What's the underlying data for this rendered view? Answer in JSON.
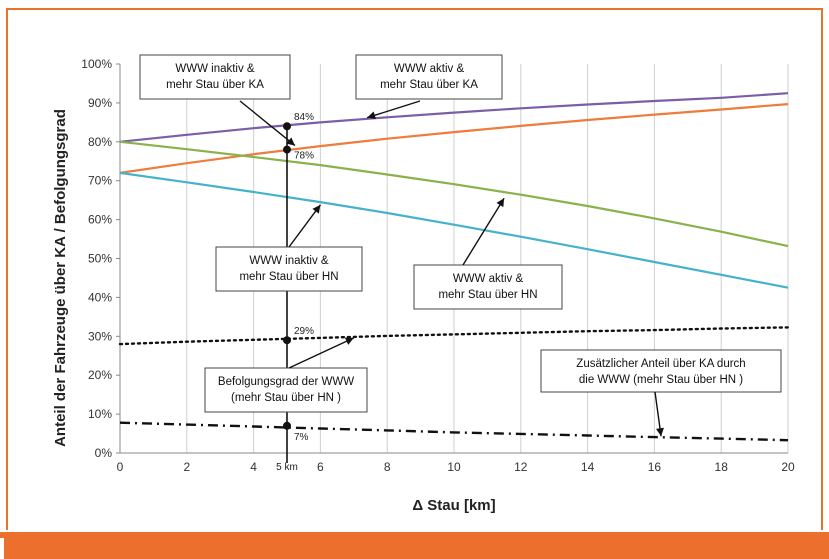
{
  "chart_data": {
    "type": "line",
    "xlabel": "Δ Stau [km]",
    "ylabel": "Anteil der Fahrzeuge über KA / Befolgungsgrad",
    "xlim": [
      0,
      20
    ],
    "ylim": [
      0,
      100
    ],
    "x_ticks": [
      "0",
      "2",
      "4",
      "6",
      "8",
      "10",
      "12",
      "14",
      "16",
      "18",
      "20"
    ],
    "y_ticks": [
      "0%",
      "10%",
      "20%",
      "30%",
      "40%",
      "50%",
      "60%",
      "70%",
      "80%",
      "90%",
      "100%"
    ],
    "grid": "vertical",
    "x": [
      0,
      2,
      4,
      6,
      8,
      10,
      12,
      14,
      16,
      18,
      20
    ],
    "series": [
      {
        "id": "purple",
        "color": "#7b5ea7",
        "style": "solid",
        "values": [
          80,
          81.8,
          83.5,
          85,
          86.3,
          87.5,
          88.6,
          89.6,
          90.5,
          91.3,
          92.5
        ]
      },
      {
        "id": "orange",
        "color": "#ee7c3a",
        "style": "solid",
        "values": [
          72,
          74.5,
          76.8,
          78.9,
          80.8,
          82.5,
          84.1,
          85.6,
          87,
          88.3,
          89.7
        ]
      },
      {
        "id": "green",
        "color": "#8ab14a",
        "style": "solid",
        "values": [
          80,
          78.1,
          76.1,
          74,
          71.6,
          69.1,
          66.4,
          63.5,
          60.3,
          56.9,
          53.2
        ]
      },
      {
        "id": "blue",
        "color": "#45b2cc",
        "style": "solid",
        "values": [
          72,
          69.6,
          67.1,
          64.5,
          61.7,
          58.7,
          55.6,
          52.4,
          49.1,
          45.8,
          42.5
        ]
      },
      {
        "id": "compliance",
        "color": "#111111",
        "style": "dotted",
        "values": [
          28,
          28.6,
          29.1,
          29.6,
          30.1,
          30.5,
          30.9,
          31.3,
          31.6,
          32,
          32.3
        ]
      },
      {
        "id": "additional",
        "color": "#111111",
        "style": "dashdot",
        "values": [
          7.8,
          7.3,
          6.8,
          6.3,
          5.8,
          5.3,
          4.9,
          4.5,
          4.1,
          3.7,
          3.3
        ]
      }
    ],
    "marker_x": 5,
    "marker_label": "5 km",
    "points": [
      {
        "y": 84,
        "label": "84%"
      },
      {
        "y": 78,
        "label": "78%"
      },
      {
        "y": 29,
        "label": "29%"
      },
      {
        "y": 7,
        "label": "7%"
      }
    ],
    "annotations": [
      {
        "id": "ann-inaktiv-ka",
        "lines": [
          "WWW inaktiv &",
          "mehr Stau über KA"
        ]
      },
      {
        "id": "ann-aktiv-ka",
        "lines": [
          "WWW aktiv &",
          "mehr Stau über KA"
        ]
      },
      {
        "id": "ann-inaktiv-hn",
        "lines": [
          "WWW inaktiv &",
          "mehr Stau über HN"
        ]
      },
      {
        "id": "ann-aktiv-hn",
        "lines": [
          "WWW aktiv &",
          "mehr Stau über HN"
        ]
      },
      {
        "id": "ann-befolgung",
        "lines": [
          "Befolgungsgrad der WWW",
          "(mehr Stau über HN )"
        ]
      },
      {
        "id": "ann-zusaetzlich",
        "lines": [
          "Zusätzlicher Anteil über KA durch",
          "die WWW (mehr Stau über HN )"
        ]
      }
    ]
  }
}
